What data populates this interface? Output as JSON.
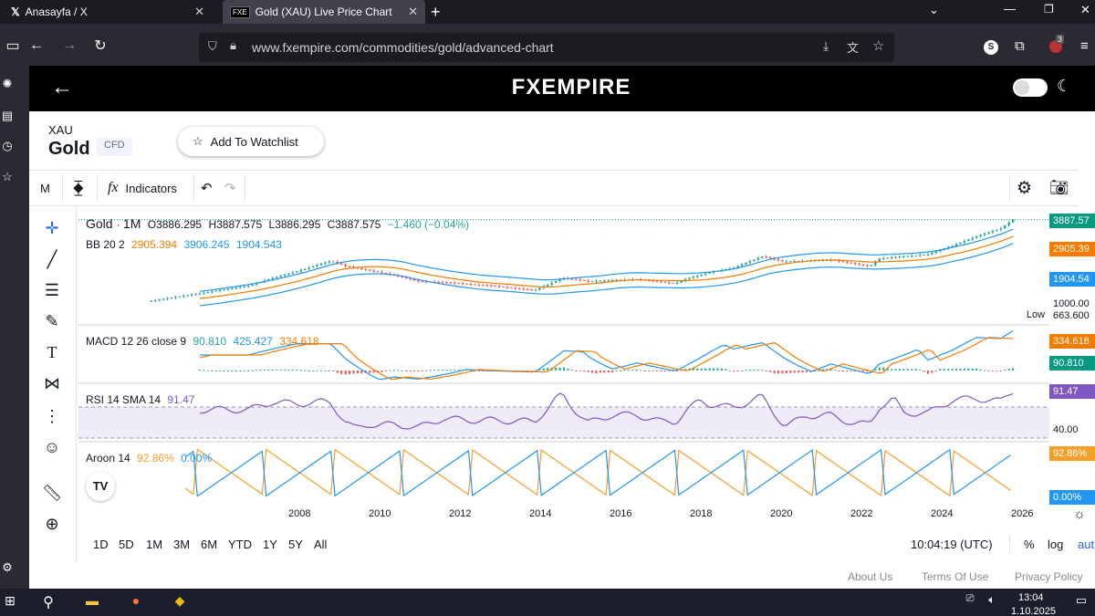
{
  "browser": {
    "tabs": [
      {
        "title": "Anasayfa / X",
        "icon": "x-icon"
      },
      {
        "title": "Gold (XAU) Live Price Chart & H",
        "icon": "fxe-icon"
      }
    ],
    "url": "www.fxempire.com/commodities/gold/advanced-chart",
    "extension_badge": "3",
    "profile_letter": "S"
  },
  "site": {
    "logo": "FXEMPIRE",
    "symbol": "XAU",
    "name": "Gold",
    "type_badge": "CFD",
    "watchlist_label": "Add To Watchlist"
  },
  "toolbar": {
    "interval": "M",
    "indicators_label": "Indicators"
  },
  "legends": {
    "main": {
      "name": "Gold",
      "interval": "1M",
      "o": "O3886.295",
      "h": "H3887.575",
      "l": "L3886.295",
      "c": "C3887.575",
      "chg": "−1.460 (−0.04%)"
    },
    "bb": {
      "name": "BB 20 2",
      "v1": "2905.394",
      "v2": "3906.245",
      "v3": "1904.543"
    },
    "macd": {
      "name": "MACD 12 26 close 9",
      "v1": "90.810",
      "v2": "425.427",
      "v3": "334.618"
    },
    "rsi": {
      "name": "RSI 14 SMA 14",
      "v1": "91.47"
    },
    "aroon": {
      "name": "Aroon 14",
      "v1": "92.86%",
      "v2": "0.00%"
    }
  },
  "price_labels": {
    "last": "3887.57",
    "bb_mid": "2905.39",
    "bb_low": "1904.54",
    "grid_1000": "1000.00",
    "low_tag": "Low",
    "low_val": "663.600",
    "macd_sig": "334.618",
    "macd_hist": "90.810",
    "rsi": "91.47",
    "rsi_40": "40.00",
    "aroon_up": "92.86%",
    "aroon_down": "0.00%"
  },
  "time_ticks": [
    "2008",
    "2010",
    "2012",
    "2014",
    "2016",
    "2018",
    "2020",
    "2022",
    "2024",
    "2026"
  ],
  "ranges": [
    "1D",
    "5D",
    "1M",
    "3M",
    "6M",
    "YTD",
    "1Y",
    "5Y",
    "All"
  ],
  "clock": "10:04:19 (UTC)",
  "scale_opts": {
    "pct": "%",
    "log": "log",
    "auto": "aut"
  },
  "footer": [
    "About Us",
    "Terms Of Use",
    "Privacy Policy"
  ],
  "taskbar": {
    "time": "13:04",
    "date": "1.10.2025"
  },
  "colors": {
    "up": "#26a69a",
    "down": "#ef5350",
    "bb_mid": "#f57c00",
    "bb_band": "#2196f3",
    "rsi": "#7e57c2",
    "aroon_up": "#f59e2a",
    "aroon_down": "#2196f3"
  },
  "chart_data": {
    "type": "line",
    "title": "Gold 1M",
    "series": [
      {
        "name": "Gold",
        "x": [
          2008,
          2009,
          2010,
          2011,
          2011.7,
          2012,
          2013,
          2013.5,
          2014,
          2015,
          2015.9,
          2016.5,
          2017,
          2018,
          2018.8,
          2019,
          2019.6,
          2020,
          2020.6,
          2021,
          2022,
          2022.8,
          2023,
          2024,
          2024.5,
          2025,
          2025.5,
          2025.75
        ],
        "y": [
          870,
          1000,
          1150,
          1500,
          1820,
          1650,
          1400,
          1250,
          1230,
          1150,
          1060,
          1330,
          1250,
          1300,
          1200,
          1300,
          1500,
          1600,
          1980,
          1800,
          1850,
          1640,
          1900,
          2050,
          2400,
          2850,
          3300,
          3887.575
        ]
      }
    ],
    "xlim": [
      2006.5,
      2026.5
    ],
    "grid": true
  }
}
